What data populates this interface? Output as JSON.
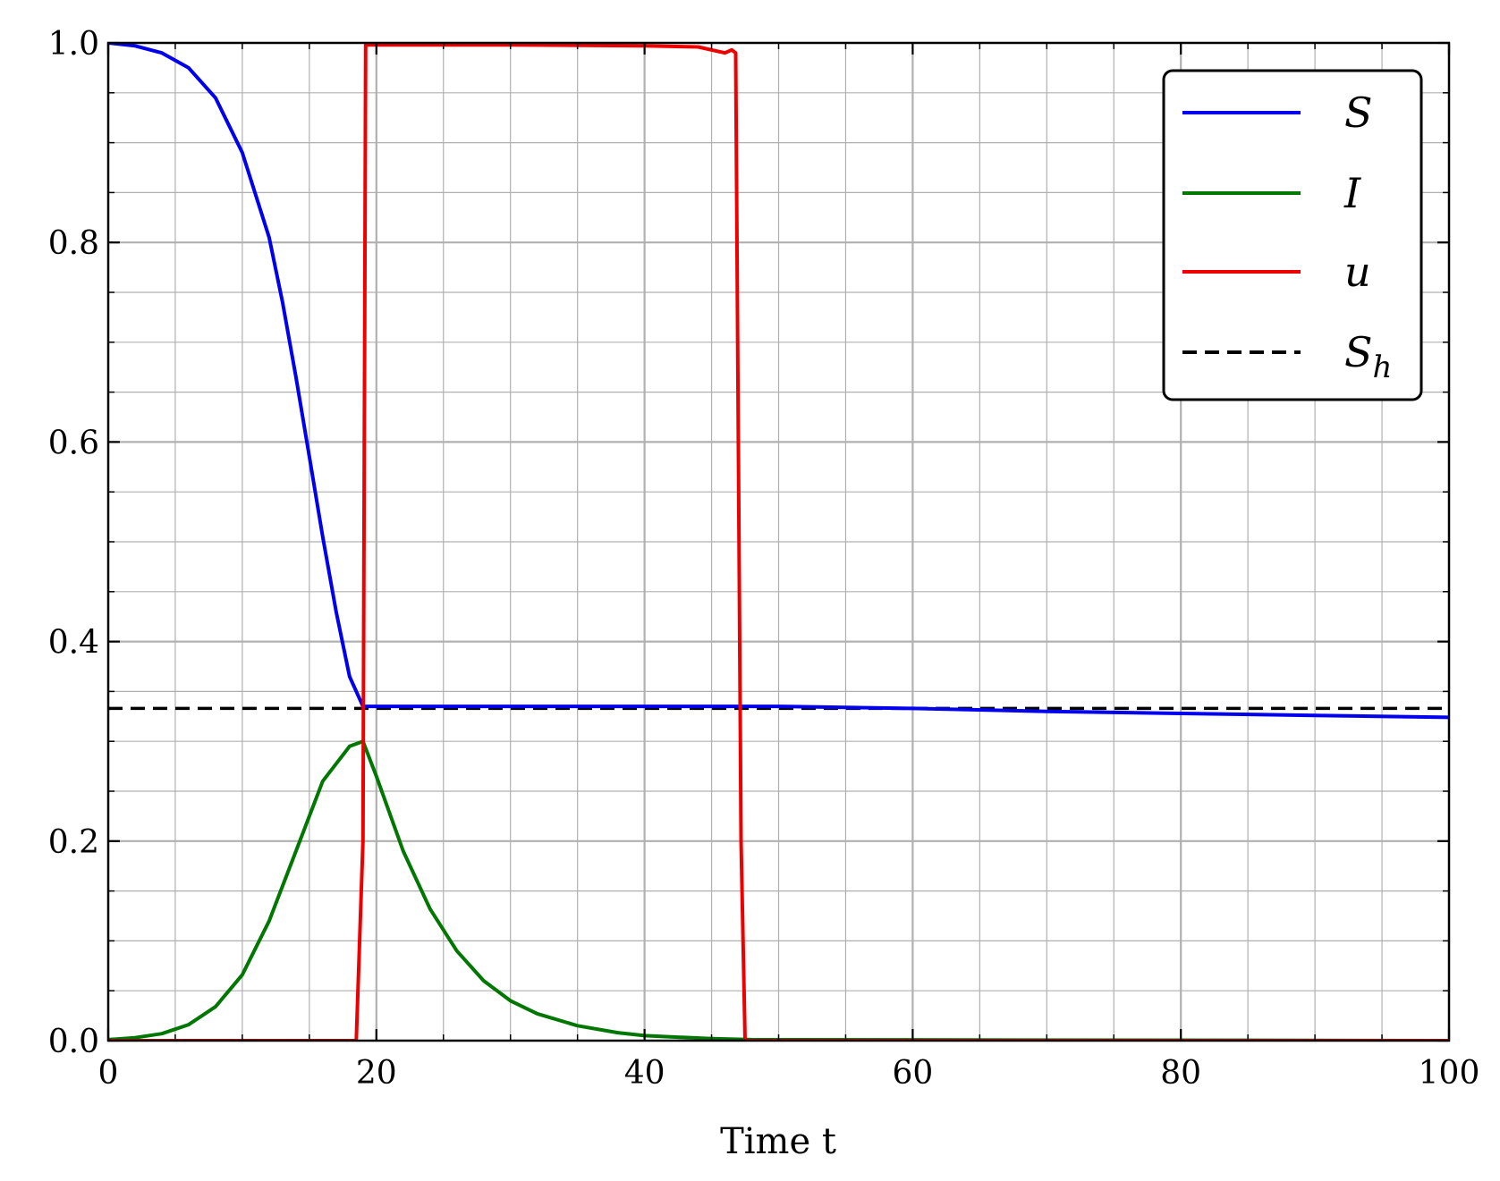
{
  "chart_data": {
    "type": "line",
    "title": "",
    "xlabel": "Time t",
    "ylabel": "",
    "xlim": [
      0,
      100
    ],
    "ylim": [
      0,
      1.0
    ],
    "xticks": [
      "0",
      "20",
      "40",
      "60",
      "80",
      "100"
    ],
    "yticks": [
      "0.0",
      "0.2",
      "0.4",
      "0.6",
      "0.8",
      "1.0"
    ],
    "grid": true,
    "minor_grid": true,
    "legend_position": "top-right",
    "series": [
      {
        "name": "S",
        "color": "#0000ee",
        "style": "solid",
        "x": [
          0,
          2,
          4,
          6,
          8,
          10,
          12,
          13,
          14,
          15,
          16,
          17,
          18,
          19,
          20,
          30,
          40,
          50,
          60,
          70,
          80,
          90,
          100
        ],
        "y": [
          1.0,
          0.997,
          0.99,
          0.975,
          0.945,
          0.89,
          0.805,
          0.74,
          0.665,
          0.585,
          0.505,
          0.43,
          0.365,
          0.335,
          0.335,
          0.335,
          0.335,
          0.335,
          0.333,
          0.33,
          0.328,
          0.326,
          0.324
        ]
      },
      {
        "name": "I",
        "color": "#007700",
        "style": "solid",
        "x": [
          0,
          2,
          4,
          6,
          8,
          10,
          12,
          14,
          16,
          18,
          19,
          20,
          22,
          24,
          26,
          28,
          30,
          32,
          35,
          38,
          40,
          45,
          48,
          100
        ],
        "y": [
          0.001,
          0.003,
          0.007,
          0.016,
          0.034,
          0.066,
          0.12,
          0.19,
          0.26,
          0.295,
          0.3,
          0.265,
          0.19,
          0.132,
          0.09,
          0.06,
          0.04,
          0.027,
          0.015,
          0.008,
          0.005,
          0.002,
          0.001,
          0.0
        ]
      },
      {
        "name": "u",
        "color": "#ee0000",
        "style": "solid",
        "x": [
          0,
          18.5,
          19.0,
          19.2,
          30,
          40,
          44,
          46,
          46.5,
          46.8,
          47.2,
          47.5,
          100
        ],
        "y": [
          0.0,
          0.0,
          0.2,
          0.998,
          0.998,
          0.997,
          0.996,
          0.99,
          0.993,
          0.99,
          0.2,
          0.0,
          0.0
        ]
      },
      {
        "name": "S_h",
        "color": "#000000",
        "style": "dashed",
        "x": [
          0,
          100
        ],
        "y": [
          0.333,
          0.333
        ]
      }
    ]
  }
}
